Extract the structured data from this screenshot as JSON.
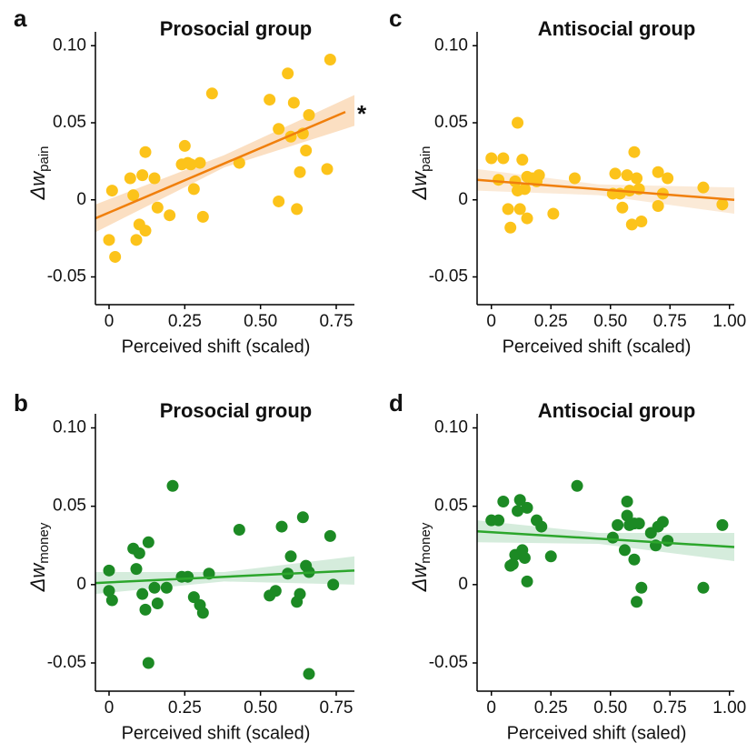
{
  "chart_data": [
    {
      "type": "scatter",
      "panel": "a",
      "title": "Prosocial group",
      "xlabel": "Perceived shift (scaled)",
      "ylabel": "Δw",
      "ylabel_sub": "pain",
      "color": "#fcc31a",
      "line_color": "#f07f0c",
      "band_color": "#f9c99a",
      "annotation": "*",
      "xlim": [
        -0.045,
        0.81
      ],
      "ylim": [
        -0.068,
        0.109
      ],
      "xticks": [
        0,
        0.25,
        {
          "value": 0.5,
          "label": "0.50"
        },
        0.75
      ],
      "yticks": [
        {
          "value": 0.1,
          "label": "0.10"
        },
        0.05,
        0,
        -0.05
      ],
      "x": [
        0.01,
        0.0,
        0.02,
        0.07,
        0.08,
        0.09,
        0.1,
        0.11,
        0.12,
        0.12,
        0.15,
        0.16,
        0.2,
        0.24,
        0.25,
        0.26,
        0.27,
        0.28,
        0.3,
        0.31,
        0.34,
        0.43,
        0.53,
        0.56,
        0.56,
        0.59,
        0.6,
        0.61,
        0.62,
        0.63,
        0.64,
        0.65,
        0.66,
        0.72,
        0.73
      ],
      "y": [
        0.006,
        -0.026,
        -0.037,
        0.014,
        0.003,
        -0.026,
        -0.016,
        0.016,
        -0.02,
        0.031,
        0.014,
        -0.005,
        -0.01,
        0.023,
        0.035,
        0.024,
        0.023,
        0.007,
        0.024,
        -0.011,
        0.069,
        0.024,
        0.065,
        0.046,
        -0.001,
        0.082,
        0.041,
        0.063,
        -0.006,
        0.018,
        0.043,
        0.032,
        0.055,
        0.02,
        0.091
      ],
      "fit": {
        "x": [
          -0.045,
          0.78
        ],
        "y": [
          -0.012,
          0.057
        ]
      },
      "band": {
        "x": [
          -0.045,
          0.38,
          0.81
        ],
        "lower": [
          -0.021,
          0.021,
          0.048
        ],
        "upper": [
          -0.003,
          0.029,
          0.068
        ]
      }
    },
    {
      "type": "scatter",
      "panel": "b",
      "title": "Prosocial group",
      "xlabel": "Perceived shift (scaled)",
      "ylabel": "Δw",
      "ylabel_sub": "money",
      "color": "#1c8a24",
      "line_color": "#2ca62c",
      "band_color": "#b9dfc4",
      "xlim": [
        -0.045,
        0.81
      ],
      "ylim": [
        -0.068,
        0.109
      ],
      "xticks": [
        0,
        0.25,
        {
          "value": 0.5,
          "label": "0.50"
        },
        0.75
      ],
      "yticks": [
        {
          "value": 0.1,
          "label": "0.10"
        },
        0.05,
        0,
        -0.05
      ],
      "x": [
        0.0,
        0.0,
        0.01,
        0.08,
        0.09,
        0.1,
        0.11,
        0.12,
        0.13,
        0.13,
        0.15,
        0.16,
        0.19,
        0.21,
        0.24,
        0.26,
        0.28,
        0.3,
        0.31,
        0.33,
        0.43,
        0.53,
        0.55,
        0.57,
        0.59,
        0.6,
        0.62,
        0.63,
        0.64,
        0.65,
        0.66,
        0.66,
        0.73,
        0.74
      ],
      "y": [
        0.009,
        -0.004,
        -0.01,
        0.023,
        0.01,
        0.02,
        -0.006,
        -0.016,
        0.027,
        -0.05,
        -0.002,
        -0.012,
        -0.002,
        0.063,
        0.005,
        0.005,
        -0.008,
        -0.013,
        -0.018,
        0.007,
        0.035,
        -0.007,
        -0.004,
        0.037,
        0.007,
        0.018,
        -0.011,
        -0.006,
        0.043,
        0.012,
        0.008,
        -0.057,
        0.031,
        0.0
      ],
      "fit": {
        "x": [
          -0.045,
          0.81
        ],
        "y": [
          0.001,
          0.009
        ]
      },
      "band": {
        "x": [
          -0.045,
          0.38,
          0.81
        ],
        "lower": [
          -0.006,
          0.002,
          0.0
        ],
        "upper": [
          0.008,
          0.008,
          0.018
        ]
      }
    },
    {
      "type": "scatter",
      "panel": "c",
      "title": "Antisocial group",
      "xlabel": "Perceived shift (scaled)",
      "ylabel": "Δw",
      "ylabel_sub": "pain",
      "color": "#fcc31a",
      "line_color": "#f07f0c",
      "band_color": "#f9dcbc",
      "xlim": [
        -0.06,
        1.02
      ],
      "ylim": [
        -0.068,
        0.109
      ],
      "xticks": [
        0,
        0.25,
        {
          "value": 0.5,
          "label": "0.50"
        },
        0.75,
        {
          "value": 1,
          "label": "1.00"
        }
      ],
      "yticks": [
        {
          "value": 0.1,
          "label": "0.10"
        },
        0.05,
        0,
        -0.05
      ],
      "x": [
        0.0,
        0.03,
        0.05,
        0.07,
        0.08,
        0.1,
        0.11,
        0.11,
        0.12,
        0.13,
        0.14,
        0.15,
        0.15,
        0.17,
        0.19,
        0.2,
        0.26,
        0.35,
        0.51,
        0.52,
        0.54,
        0.55,
        0.57,
        0.58,
        0.59,
        0.6,
        0.61,
        0.62,
        0.63,
        0.7,
        0.7,
        0.72,
        0.74,
        0.89,
        0.97
      ],
      "y": [
        0.027,
        0.013,
        0.027,
        -0.006,
        -0.018,
        0.012,
        0.05,
        0.006,
        -0.006,
        0.026,
        0.007,
        0.015,
        -0.012,
        0.014,
        0.012,
        0.016,
        -0.009,
        0.014,
        0.004,
        0.017,
        0.004,
        -0.005,
        0.016,
        0.006,
        -0.016,
        0.031,
        0.014,
        0.007,
        -0.014,
        -0.004,
        0.018,
        0.004,
        0.014,
        0.008,
        -0.003
      ],
      "fit": {
        "x": [
          -0.06,
          1.02
        ],
        "y": [
          0.013,
          0.0
        ]
      },
      "band": {
        "x": [
          -0.06,
          0.45,
          1.02
        ],
        "lower": [
          0.006,
          0.003,
          -0.009
        ],
        "upper": [
          0.02,
          0.01,
          0.008
        ]
      }
    },
    {
      "type": "scatter",
      "panel": "d",
      "title": "Antisocial group",
      "xlabel": "Perceived shift (saled)",
      "ylabel": "Δw",
      "ylabel_sub": "money",
      "color": "#1c8a24",
      "line_color": "#2ca62c",
      "band_color": "#b9dfc4",
      "xlim": [
        -0.06,
        1.02
      ],
      "ylim": [
        -0.068,
        0.109
      ],
      "xticks": [
        0,
        0.25,
        {
          "value": 0.5,
          "label": "0.50"
        },
        0.75,
        {
          "value": 1,
          "label": "1.00"
        }
      ],
      "yticks": [
        {
          "value": 0.1,
          "label": "0.10"
        },
        0.05,
        0,
        -0.05
      ],
      "x": [
        0.0,
        0.03,
        0.05,
        0.08,
        0.09,
        0.1,
        0.11,
        0.12,
        0.13,
        0.14,
        0.15,
        0.15,
        0.19,
        0.21,
        0.25,
        0.36,
        0.51,
        0.53,
        0.56,
        0.57,
        0.57,
        0.58,
        0.6,
        0.6,
        0.61,
        0.62,
        0.63,
        0.67,
        0.69,
        0.7,
        0.72,
        0.74,
        0.89,
        0.97
      ],
      "y": [
        0.041,
        0.041,
        0.053,
        0.012,
        0.013,
        0.019,
        0.047,
        0.054,
        0.022,
        0.017,
        0.049,
        0.002,
        0.041,
        0.037,
        0.018,
        0.063,
        0.03,
        0.038,
        0.022,
        0.044,
        0.053,
        0.038,
        0.039,
        0.016,
        -0.011,
        0.039,
        -0.002,
        0.033,
        0.025,
        0.037,
        0.04,
        0.028,
        -0.002,
        0.038
      ],
      "fit": {
        "x": [
          -0.06,
          1.02
        ],
        "y": [
          0.034,
          0.024
        ]
      },
      "band": {
        "x": [
          -0.06,
          0.45,
          1.02
        ],
        "lower": [
          0.027,
          0.026,
          0.015
        ],
        "upper": [
          0.041,
          0.033,
          0.033
        ]
      }
    }
  ]
}
